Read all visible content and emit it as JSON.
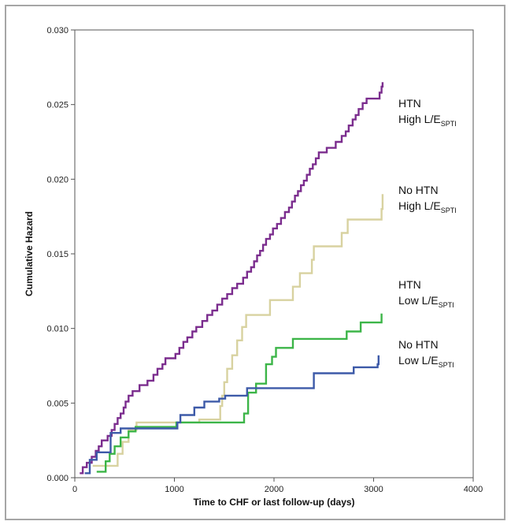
{
  "chart_data": {
    "type": "line",
    "step": true,
    "xlabel": "Time to CHF or last follow-up (days)",
    "ylabel": "Cumulative Hazard",
    "xlim": [
      0,
      4000
    ],
    "ylim": [
      0,
      0.03
    ],
    "xticks": [
      0,
      1000,
      2000,
      3000,
      4000
    ],
    "yticks": [
      0.0,
      0.005,
      0.01,
      0.015,
      0.02,
      0.025,
      0.03
    ],
    "ytick_labels": [
      "0.000",
      "0.005",
      "0.010",
      "0.015",
      "0.020",
      "0.025",
      "0.030"
    ],
    "grid": false,
    "series": [
      {
        "color": "#7b2d8e",
        "annotation": [
          "HTN",
          "High L/E",
          "SPTI"
        ],
        "points": [
          [
            50,
            0.0003
          ],
          [
            80,
            0.0007
          ],
          [
            120,
            0.001
          ],
          [
            170,
            0.0014
          ],
          [
            210,
            0.0018
          ],
          [
            240,
            0.0021
          ],
          [
            270,
            0.0025
          ],
          [
            330,
            0.0028
          ],
          [
            370,
            0.0032
          ],
          [
            400,
            0.0036
          ],
          [
            430,
            0.004
          ],
          [
            460,
            0.0043
          ],
          [
            490,
            0.0047
          ],
          [
            510,
            0.0051
          ],
          [
            540,
            0.0055
          ],
          [
            580,
            0.0058
          ],
          [
            650,
            0.0062
          ],
          [
            730,
            0.0065
          ],
          [
            790,
            0.0069
          ],
          [
            830,
            0.0073
          ],
          [
            880,
            0.0076
          ],
          [
            910,
            0.008
          ],
          [
            1010,
            0.0083
          ],
          [
            1050,
            0.0087
          ],
          [
            1090,
            0.0091
          ],
          [
            1130,
            0.0094
          ],
          [
            1180,
            0.0098
          ],
          [
            1220,
            0.0101
          ],
          [
            1280,
            0.0105
          ],
          [
            1330,
            0.0109
          ],
          [
            1380,
            0.0112
          ],
          [
            1430,
            0.0116
          ],
          [
            1480,
            0.012
          ],
          [
            1530,
            0.0123
          ],
          [
            1580,
            0.0127
          ],
          [
            1630,
            0.013
          ],
          [
            1690,
            0.0134
          ],
          [
            1730,
            0.0138
          ],
          [
            1770,
            0.0141
          ],
          [
            1800,
            0.0145
          ],
          [
            1830,
            0.0149
          ],
          [
            1860,
            0.0152
          ],
          [
            1890,
            0.0156
          ],
          [
            1920,
            0.016
          ],
          [
            1960,
            0.0163
          ],
          [
            1990,
            0.0167
          ],
          [
            2030,
            0.017
          ],
          [
            2070,
            0.0174
          ],
          [
            2110,
            0.0178
          ],
          [
            2150,
            0.0181
          ],
          [
            2180,
            0.0185
          ],
          [
            2210,
            0.0189
          ],
          [
            2240,
            0.0192
          ],
          [
            2270,
            0.0196
          ],
          [
            2300,
            0.0199
          ],
          [
            2330,
            0.0203
          ],
          [
            2360,
            0.0207
          ],
          [
            2390,
            0.021
          ],
          [
            2420,
            0.0214
          ],
          [
            2450,
            0.0218
          ],
          [
            2530,
            0.0221
          ],
          [
            2620,
            0.0225
          ],
          [
            2680,
            0.0229
          ],
          [
            2720,
            0.0232
          ],
          [
            2750,
            0.0236
          ],
          [
            2790,
            0.024
          ],
          [
            2820,
            0.0243
          ],
          [
            2850,
            0.0247
          ],
          [
            2890,
            0.0251
          ],
          [
            2930,
            0.0254
          ],
          [
            3060,
            0.0258
          ],
          [
            3080,
            0.0262
          ],
          [
            3090,
            0.0265
          ]
        ]
      },
      {
        "color": "#d8d2a0",
        "annotation": [
          "No HTN",
          "High L/E",
          "SPTI"
        ],
        "points": [
          [
            180,
            0.0008
          ],
          [
            430,
            0.0016
          ],
          [
            480,
            0.0024
          ],
          [
            540,
            0.0032
          ],
          [
            620,
            0.0037
          ],
          [
            1050,
            0.0037
          ],
          [
            1250,
            0.0039
          ],
          [
            1460,
            0.0048
          ],
          [
            1480,
            0.0055
          ],
          [
            1500,
            0.0064
          ],
          [
            1530,
            0.0073
          ],
          [
            1580,
            0.0082
          ],
          [
            1630,
            0.0092
          ],
          [
            1680,
            0.0101
          ],
          [
            1720,
            0.0109
          ],
          [
            1960,
            0.0119
          ],
          [
            2190,
            0.0128
          ],
          [
            2260,
            0.0137
          ],
          [
            2380,
            0.0146
          ],
          [
            2400,
            0.0155
          ],
          [
            2680,
            0.0164
          ],
          [
            2740,
            0.0173
          ],
          [
            3080,
            0.018
          ],
          [
            3090,
            0.019
          ]
        ]
      },
      {
        "color": "#3cb548",
        "annotation": [
          "HTN",
          "Low  L/E",
          "SPTI"
        ],
        "points": [
          [
            220,
            0.0004
          ],
          [
            310,
            0.0011
          ],
          [
            350,
            0.0016
          ],
          [
            400,
            0.0021
          ],
          [
            460,
            0.0027
          ],
          [
            540,
            0.0031
          ],
          [
            610,
            0.0034
          ],
          [
            1000,
            0.0034
          ],
          [
            1020,
            0.0037
          ],
          [
            1500,
            0.0037
          ],
          [
            1700,
            0.0043
          ],
          [
            1740,
            0.0057
          ],
          [
            1820,
            0.0063
          ],
          [
            1920,
            0.0076
          ],
          [
            1980,
            0.0081
          ],
          [
            2020,
            0.0087
          ],
          [
            2190,
            0.0093
          ],
          [
            2730,
            0.0098
          ],
          [
            2870,
            0.0104
          ],
          [
            3080,
            0.011
          ]
        ]
      },
      {
        "color": "#3d5aa8",
        "annotation": [
          "No  HTN",
          "Low  L/E",
          "SPTI"
        ],
        "points": [
          [
            100,
            0.0003
          ],
          [
            150,
            0.0012
          ],
          [
            220,
            0.0017
          ],
          [
            360,
            0.003
          ],
          [
            460,
            0.0033
          ],
          [
            870,
            0.0033
          ],
          [
            1030,
            0.0037
          ],
          [
            1060,
            0.0042
          ],
          [
            1200,
            0.0047
          ],
          [
            1300,
            0.0051
          ],
          [
            1450,
            0.0053
          ],
          [
            1510,
            0.0055
          ],
          [
            1730,
            0.006
          ],
          [
            2400,
            0.007
          ],
          [
            2800,
            0.0074
          ],
          [
            3040,
            0.0076
          ],
          [
            3050,
            0.0082
          ]
        ]
      }
    ]
  }
}
